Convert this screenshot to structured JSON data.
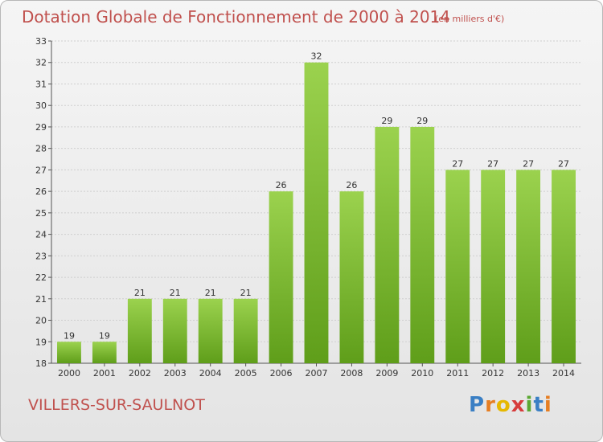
{
  "title": "Dotation Globale de Fonctionnement de 2000 à 2014",
  "subtitle": "(en milliers d'€)",
  "commune": "VILLERS-SUR-SAULNOT",
  "logo": {
    "letters": [
      "P",
      "r",
      "o",
      "x",
      "i",
      "t",
      "i"
    ],
    "colors": [
      "#3a7fc4",
      "#e67e22",
      "#e6b800",
      "#d63b3b",
      "#5aa832",
      "#3a7fc4",
      "#e67e22"
    ]
  },
  "colors": {
    "bar_light": "#9bd24e",
    "bar_dark": "#5f9e1a",
    "title": "#c0504d",
    "grid": "#cfcfcf"
  },
  "chart_data": {
    "type": "bar",
    "title": "Dotation Globale de Fonctionnement de 2000 à 2014",
    "subtitle": "(en milliers d'€)",
    "categories": [
      "2000",
      "2001",
      "2002",
      "2003",
      "2004",
      "2005",
      "2006",
      "2007",
      "2008",
      "2009",
      "2010",
      "2011",
      "2012",
      "2013",
      "2014"
    ],
    "values": [
      19,
      19,
      21,
      21,
      21,
      21,
      26,
      32,
      26,
      29,
      29,
      27,
      27,
      27,
      27
    ],
    "ylim": [
      18,
      33
    ],
    "yticks": [
      18,
      19,
      20,
      21,
      22,
      23,
      24,
      25,
      26,
      27,
      28,
      29,
      30,
      31,
      32,
      33
    ],
    "grid": true
  }
}
